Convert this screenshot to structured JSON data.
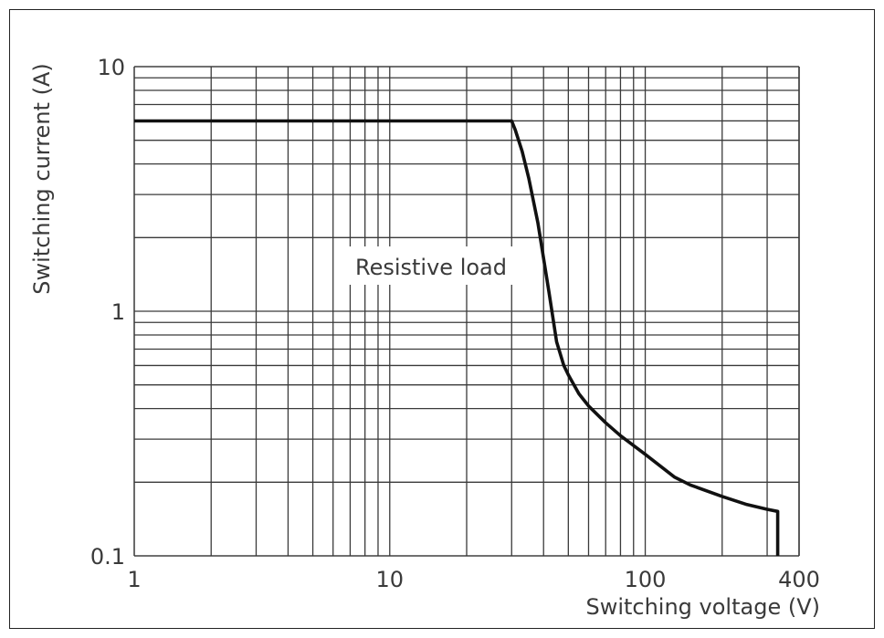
{
  "chart_data": {
    "type": "line",
    "title": "",
    "xlabel": "Switching voltage (V)",
    "ylabel": "Switching current (A)",
    "x_scale": "log",
    "y_scale": "log",
    "xlim": [
      1,
      400
    ],
    "ylim": [
      0.1,
      10
    ],
    "grid": true,
    "x_ticks": [
      {
        "value": 1,
        "label": "1"
      },
      {
        "value": 10,
        "label": "10"
      },
      {
        "value": 100,
        "label": "100"
      },
      {
        "value": 400,
        "label": "400"
      }
    ],
    "y_ticks": [
      {
        "value": 0.1,
        "label": "0.1"
      },
      {
        "value": 1,
        "label": "1"
      },
      {
        "value": 10,
        "label": "10"
      }
    ],
    "annotation": "Resistive load",
    "series": [
      {
        "x": [
          1,
          30,
          31,
          33,
          35,
          38,
          42,
          45,
          48,
          50,
          55,
          60,
          70,
          80,
          100,
          130,
          150,
          200,
          250,
          300,
          330,
          330
        ],
        "y": [
          6,
          6,
          5.5,
          4.5,
          3.5,
          2.3,
          1.2,
          0.75,
          0.6,
          0.55,
          0.46,
          0.41,
          0.35,
          0.31,
          0.26,
          0.21,
          0.195,
          0.175,
          0.162,
          0.155,
          0.152,
          0.1
        ]
      }
    ]
  }
}
